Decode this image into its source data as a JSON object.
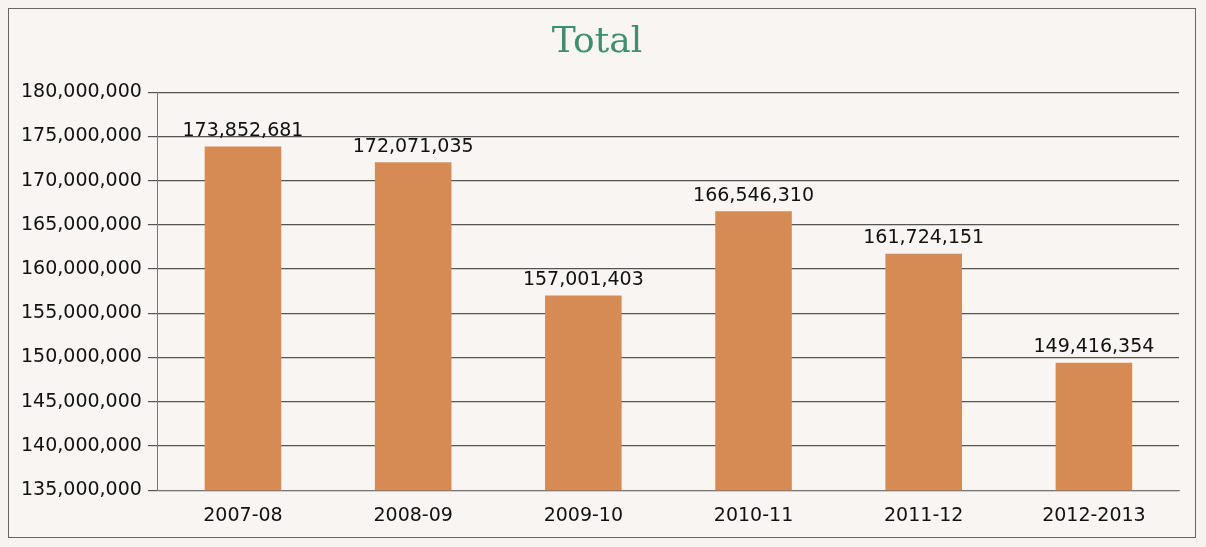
{
  "chart_data": {
    "type": "bar",
    "title": "Total",
    "categories": [
      "2007-08",
      "2008-09",
      "2009-10",
      "2010-11",
      "2011-12",
      "2012-2013"
    ],
    "values": [
      173852681,
      172071035,
      157001403,
      166546310,
      161724151,
      149416354
    ],
    "value_labels": [
      "173,852,681",
      "172,071,035",
      "157,001,403",
      "166,546,310",
      "161,724,151",
      "149,416,354"
    ],
    "color": "#d68b55",
    "ylim": [
      135000000,
      180000000
    ],
    "yticks": [
      {
        "value": 135000000,
        "label": "135,000,000"
      },
      {
        "value": 140000000,
        "label": "140,000,000"
      },
      {
        "value": 145000000,
        "label": "145,000,000"
      },
      {
        "value": 150000000,
        "label": "150,000,000"
      },
      {
        "value": 155000000,
        "label": "155,000,000"
      },
      {
        "value": 160000000,
        "label": "160,000,000"
      },
      {
        "value": 165000000,
        "label": "165,000,000"
      },
      {
        "value": 170000000,
        "label": "170,000,000"
      },
      {
        "value": 175000000,
        "label": "175,000,000"
      },
      {
        "value": 180000000,
        "label": "180,000,000"
      }
    ],
    "grid": "y"
  }
}
